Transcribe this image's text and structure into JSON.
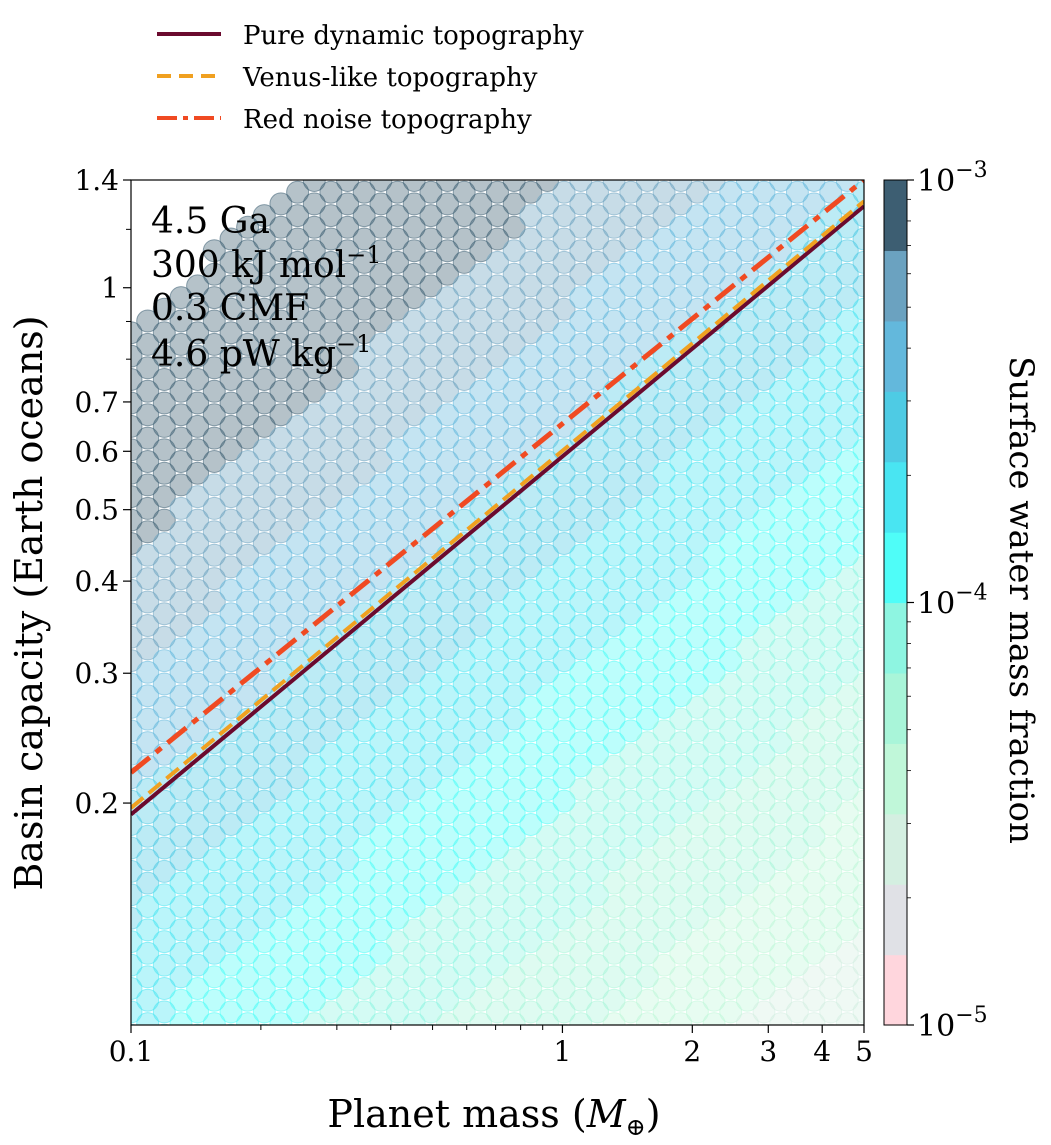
{
  "chart_data": {
    "type": "scatter",
    "xlabel": "Planet mass (M⊕)",
    "ylabel": "Basin capacity (Earth oceans)",
    "xscale": "log",
    "yscale": "log",
    "xlim": [
      0.1,
      5
    ],
    "ylim": [
      0.1,
      1.4
    ],
    "xticks": [
      {
        "value": 0.1,
        "label": "0.1"
      },
      {
        "value": 1,
        "label": "1"
      },
      {
        "value": 2,
        "label": "2"
      },
      {
        "value": 3,
        "label": "3"
      },
      {
        "value": 4,
        "label": "4"
      },
      {
        "value": 5,
        "label": "5"
      }
    ],
    "yticks": [
      {
        "value": 0.2,
        "label": "0.2"
      },
      {
        "value": 0.3,
        "label": "0.3"
      },
      {
        "value": 0.4,
        "label": "0.4"
      },
      {
        "value": 0.5,
        "label": "0.5"
      },
      {
        "value": 0.6,
        "label": "0.6"
      },
      {
        "value": 0.7,
        "label": "0.7"
      },
      {
        "value": 1,
        "label": "1"
      },
      {
        "value": 1.4,
        "label": "1.4"
      }
    ],
    "grid": false,
    "legend_placement": "above-plot",
    "annotations": [
      "4.5 Ga",
      "300 kJ mol^-1",
      "0.3 CMF",
      "4.6 pW kg^-1"
    ],
    "series": [
      {
        "name": "Pure dynamic topography",
        "style": "solid",
        "color": "#6b0a2e",
        "x": [
          0.1,
          5
        ],
        "y": [
          0.193,
          1.29
        ]
      },
      {
        "name": "Venus-like topography",
        "style": "dashed",
        "color": "#f0a020",
        "x": [
          0.1,
          5
        ],
        "y": [
          0.197,
          1.31
        ]
      },
      {
        "name": "Red noise topography",
        "style": "dashdot",
        "color": "#f04a22",
        "x": [
          0.1,
          5
        ],
        "y": [
          0.22,
          1.4
        ]
      }
    ],
    "colorbar": {
      "label": "Surface water mass fraction",
      "scale": "log",
      "range": [
        1e-05,
        0.001
      ],
      "ticks": [
        {
          "value": 0.001,
          "base": "10",
          "exp": "−3"
        },
        {
          "value": 0.0001,
          "base": "10",
          "exp": "−4"
        },
        {
          "value": 1e-05,
          "base": "10",
          "exp": "−5"
        }
      ],
      "colors": [
        "#ffd6dd",
        "#e0e1e6",
        "#d4efe1",
        "#c0f7d9",
        "#a9f5d9",
        "#8ef5e1",
        "#4ffdf8",
        "#49e5f2",
        "#4ecbe4",
        "#63b8dc",
        "#6ba2c0",
        "#3d5e72"
      ]
    },
    "points": {
      "x_range": [
        0.1,
        5
      ],
      "y_range": [
        0.1,
        1.4
      ],
      "value_range": [
        1e-05,
        0.001
      ],
      "value_model": "w = 1.0e-4 * (C / 0.2) / M^0.49",
      "shown_where": "w >= 1e-5"
    }
  }
}
